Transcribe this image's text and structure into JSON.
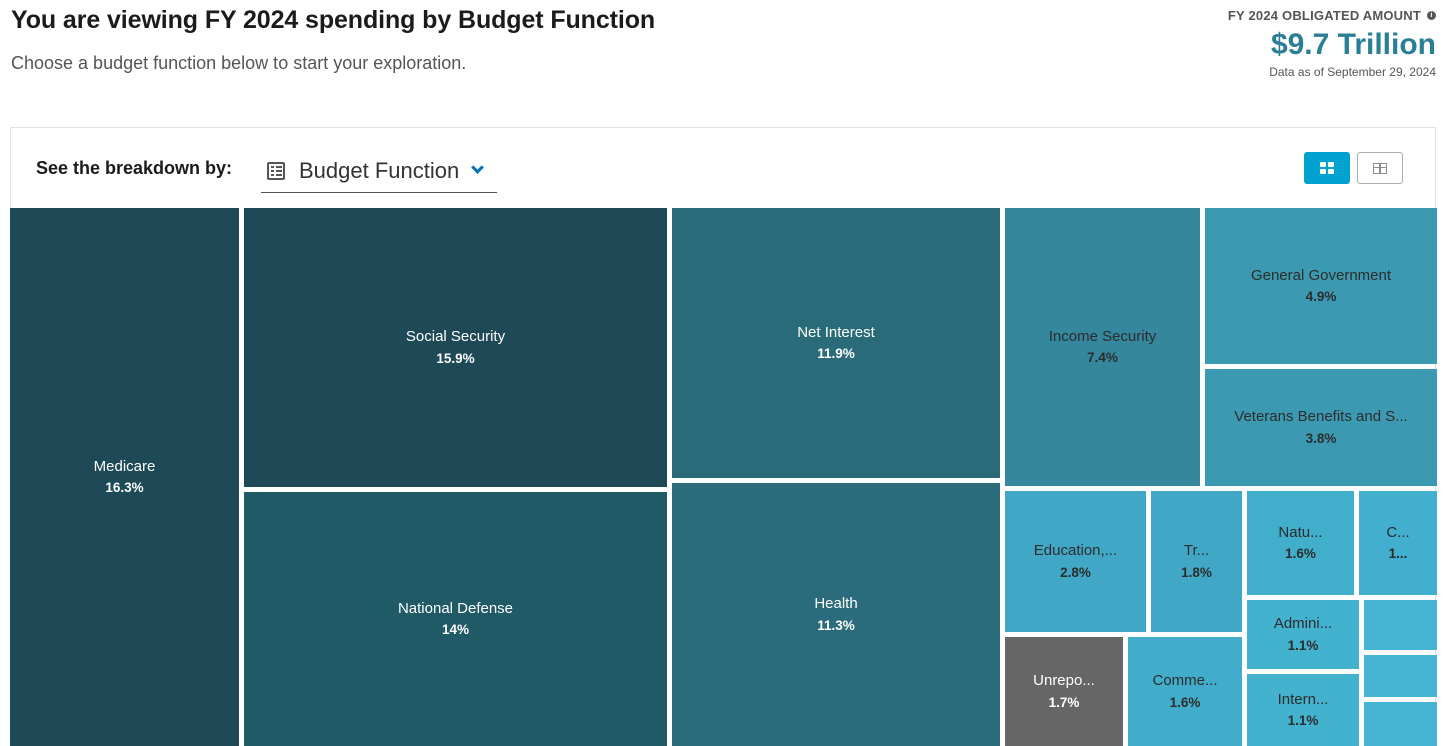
{
  "header": {
    "title": "You are viewing FY 2024 spending by Budget Function",
    "subtitle": "Choose a budget function below to start your exploration."
  },
  "amount": {
    "label": "FY 2024 OBLIGATED AMOUNT",
    "value": "$9.7 Trillion",
    "date": "Data as of September 29, 2024"
  },
  "controls": {
    "breakdown_label": "See the breakdown by:",
    "dropdown_value": "Budget Function",
    "dropdown_icon": "list-icon",
    "views": [
      "treemap",
      "table"
    ],
    "active_view": "treemap"
  },
  "chart_data": {
    "type": "treemap",
    "title": "",
    "items": [
      {
        "name": "Medicare",
        "label": "Medicare",
        "pct": "16.3%",
        "value": 16.3,
        "color": "#1d4a56"
      },
      {
        "name": "Social Security",
        "label": "Social Security",
        "pct": "15.9%",
        "value": 15.9,
        "color": "#1e4956"
      },
      {
        "name": "National Defense",
        "label": "National Defense",
        "pct": "14%",
        "value": 14.0,
        "color": "#215a67"
      },
      {
        "name": "Net Interest",
        "label": "Net Interest",
        "pct": "11.9%",
        "value": 11.9,
        "color": "#2a6b7a"
      },
      {
        "name": "Health",
        "label": "Health",
        "pct": "11.3%",
        "value": 11.3,
        "color": "#2a6c7b"
      },
      {
        "name": "Income Security",
        "label": "Income Security",
        "pct": "7.4%",
        "value": 7.4,
        "color": "#34879d"
      },
      {
        "name": "General Government",
        "label": "General Government",
        "pct": "4.9%",
        "value": 4.9,
        "color": "#3b9ab1"
      },
      {
        "name": "Veterans Benefits and Services",
        "label": "Veterans Benefits and S...",
        "pct": "3.8%",
        "value": 3.8,
        "color": "#3b9ab2"
      },
      {
        "name": "Education",
        "label": "Education,...",
        "pct": "2.8%",
        "value": 2.8,
        "color": "#40a8c6"
      },
      {
        "name": "Transportation",
        "label": "Tr...",
        "pct": "1.8%",
        "value": 1.8,
        "color": "#40a8c6"
      },
      {
        "name": "Natural Resources",
        "label": "Natu...",
        "pct": "1.6%",
        "value": 1.6,
        "color": "#41aecc"
      },
      {
        "name": "C",
        "label": "C...",
        "pct": "1...",
        "value": null,
        "color": "#41afcd"
      },
      {
        "name": "Unreported",
        "label": "Unrepo...",
        "pct": "1.7%",
        "value": 1.7,
        "color": "#666666"
      },
      {
        "name": "Commerce",
        "label": "Comme...",
        "pct": "1.6%",
        "value": 1.6,
        "color": "#41adca"
      },
      {
        "name": "Administration",
        "label": "Admini...",
        "pct": "1.1%",
        "value": 1.1,
        "color": "#43b2cf"
      },
      {
        "name": "International",
        "label": "Intern...",
        "pct": "1.1%",
        "value": 1.1,
        "color": "#43b2cf"
      },
      {
        "name": "",
        "label": "",
        "pct": "",
        "value": null,
        "color": "#45b5d3"
      },
      {
        "name": "",
        "label": "",
        "pct": "",
        "value": null,
        "color": "#45b5d3"
      },
      {
        "name": "",
        "label": "",
        "pct": "",
        "value": null,
        "color": "#45b5d3"
      }
    ]
  }
}
